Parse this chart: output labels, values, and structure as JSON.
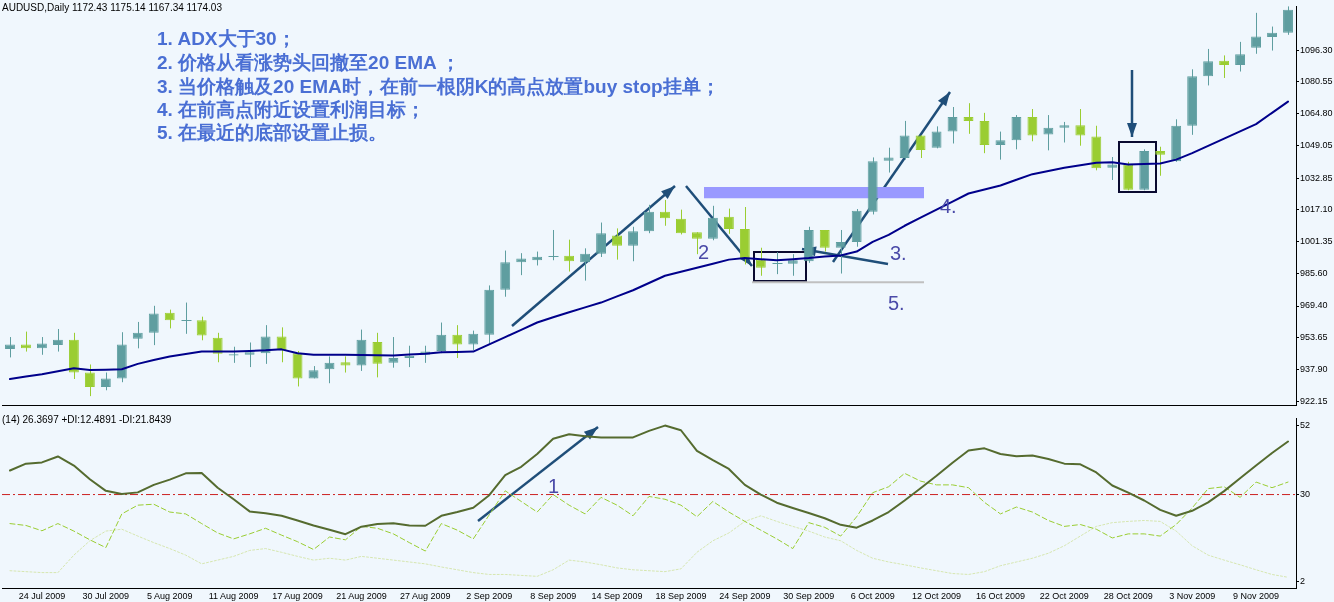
{
  "chart_data": [
    {
      "type": "candlestick",
      "title": "AUDUSD,Daily 1172.43 1175.14 1167.34 1174.03",
      "categories": [
        null,
        null,
        null,
        null,
        null,
        null,
        null,
        null,
        null,
        null,
        null,
        null,
        null,
        null,
        null,
        null,
        null,
        null,
        null,
        null,
        null,
        null,
        null,
        null,
        null,
        null,
        null,
        null,
        null,
        null,
        null,
        null,
        null,
        null,
        null,
        null,
        null,
        null,
        null,
        null,
        null,
        null,
        null,
        null,
        null,
        null,
        null,
        null,
        null,
        null,
        null,
        null,
        null,
        null,
        null,
        null,
        null,
        null,
        null,
        null,
        null,
        null,
        null,
        null,
        null,
        null,
        null,
        null,
        null,
        null,
        null,
        null,
        null,
        null,
        null,
        null,
        null,
        null,
        null,
        null,
        null
      ],
      "ohlc": [
        [
          948.1,
          954.0,
          943.9,
          950.3
        ],
        [
          950.3,
          956.7,
          946.8,
          948.4
        ],
        [
          948.4,
          954.0,
          945.2,
          950.8
        ],
        [
          950.0,
          958.0,
          946.8,
          952.7
        ],
        [
          952.7,
          956.1,
          933.2,
          936.4
        ],
        [
          936.4,
          940.4,
          924.7,
          929.2
        ],
        [
          929.2,
          936.4,
          927.6,
          933.5
        ],
        [
          933.5,
          956.4,
          931.6,
          950.3
        ],
        [
          953.2,
          961.5,
          948.4,
          956.1
        ],
        [
          956.1,
          969.5,
          950.0,
          965.7
        ],
        [
          966.0,
          967.6,
          958.3,
          962.3
        ],
        [
          962.5,
          971.1,
          955.6,
          962.5
        ],
        [
          962.3,
          964.1,
          952.4,
          954.8
        ],
        [
          953.7,
          956.1,
          941.5,
          945.7
        ],
        [
          944.9,
          949.2,
          941.2,
          945.5
        ],
        [
          945.2,
          951.3,
          939.1,
          946.5
        ],
        [
          946.0,
          959.9,
          940.7,
          954.3
        ],
        [
          954.3,
          958.8,
          941.5,
          947.6
        ],
        [
          946.0,
          947.1,
          929.5,
          933.5
        ],
        [
          933.5,
          939.6,
          933.5,
          937.5
        ],
        [
          938.0,
          944.4,
          931.1,
          941.2
        ],
        [
          941.5,
          944.4,
          936.4,
          939.9
        ],
        [
          939.9,
          957.7,
          937.2,
          952.7
        ],
        [
          951.6,
          956.1,
          934.0,
          940.7
        ],
        [
          941.2,
          954.0,
          938.8,
          943.6
        ],
        [
          943.6,
          949.7,
          939.1,
          944.7
        ],
        [
          945.2,
          949.7,
          941.2,
          946.8
        ],
        [
          947.1,
          961.2,
          946.0,
          955.1
        ],
        [
          955.1,
          959.9,
          943.6,
          950.3
        ],
        [
          950.3,
          957.2,
          947.6,
          955.6
        ],
        [
          955.1,
          979.6,
          950.8,
          977.5
        ],
        [
          977.5,
          996.9,
          974.0,
          991.1
        ],
        [
          991.1,
          995.6,
          984.7,
          992.9
        ],
        [
          992.1,
          996.4,
          989.5,
          993.8
        ],
        [
          994.3,
          1007.1,
          992.1,
          994.3
        ],
        [
          994.3,
          1002.3,
          986.5,
          991.6
        ],
        [
          991.1,
          998.0,
          982.0,
          995.3
        ],
        [
          995.3,
          1010.8,
          993.7,
          1005.5
        ],
        [
          1004.4,
          1007.9,
          992.4,
          999.3
        ],
        [
          999.3,
          1008.7,
          991.6,
          1006.5
        ],
        [
          1006.5,
          1019.6,
          1005.5,
          1016.1
        ],
        [
          1016.1,
          1022.0,
          1009.2,
          1012.9
        ],
        [
          1012.7,
          1017.2,
          1004.9,
          1005.5
        ],
        [
          1006.0,
          1006.0,
          995.1,
          1002.8
        ],
        [
          1002.8,
          1019.1,
          1002.0,
          1013.2
        ],
        [
          1013.7,
          1017.7,
          1005.2,
          1007.6
        ],
        [
          1007.6,
          1018.5,
          990.0,
          993.2
        ],
        [
          992.4,
          998.3,
          984.4,
          988.4
        ],
        [
          990.5,
          996.1,
          985.2,
          990.5
        ],
        [
          990.3,
          995.1,
          984.4,
          992.1
        ],
        [
          991.6,
          1008.7,
          990.8,
          1007.1
        ],
        [
          1007.1,
          1007.1,
          996.4,
          998.3
        ],
        [
          998.3,
          1007.1,
          985.5,
          1001.2
        ],
        [
          1001.2,
          1017.5,
          998.8,
          1016.7
        ],
        [
          1016.1,
          1043.1,
          1014.8,
          1041.2
        ],
        [
          1041.5,
          1047.9,
          1035.6,
          1043.1
        ],
        [
          1042.8,
          1061.2,
          1042.0,
          1054.0
        ],
        [
          1054.0,
          1054.0,
          1042.8,
          1046.8
        ],
        [
          1047.9,
          1058.5,
          1047.6,
          1055.9
        ],
        [
          1055.9,
          1068.1,
          1050.0,
          1063.1
        ],
        [
          1063.1,
          1070.0,
          1054.8,
          1061.2
        ],
        [
          1061.2,
          1065.2,
          1045.2,
          1049.2
        ],
        [
          1049.2,
          1055.9,
          1042.0,
          1051.6
        ],
        [
          1051.6,
          1064.1,
          1047.1,
          1063.1
        ],
        [
          1063.1,
          1067.1,
          1051.1,
          1054.0
        ],
        [
          1054.5,
          1064.1,
          1046.6,
          1057.8
        ],
        [
          1057.8,
          1060.7,
          1050.5,
          1059.1
        ],
        [
          1059.1,
          1067.1,
          1048.9,
          1054.0
        ],
        [
          1053.5,
          1058.8,
          1036.7,
          1037.7
        ],
        [
          1038.0,
          1043.3,
          1031.9,
          1039.6
        ],
        [
          1039.6,
          1040.9,
          1026.8,
          1027.1
        ],
        [
          1027.1,
          1047.1,
          1026.8,
          1046.3
        ],
        [
          1046.3,
          1048.4,
          1034.0,
          1044.4
        ],
        [
          1041.2,
          1062.0,
          1040.9,
          1058.8
        ],
        [
          1058.8,
          1086.8,
          1054.3,
          1083.3
        ],
        [
          1083.3,
          1096.9,
          1078.8,
          1090.8
        ],
        [
          1091.1,
          1093.7,
          1082.5,
          1088.9
        ],
        [
          1088.9,
          1100.4,
          1085.7,
          1094.3
        ],
        [
          1097.5,
          1114.8,
          1094.5,
          1103.1
        ],
        [
          1102.8,
          1108.0,
          1096.1,
          1104.9
        ],
        [
          1104.9,
          1118.0,
          1103.9,
          1116.4
        ]
      ],
      "colors": [
        "#5f9ea0",
        "#9acd32",
        "#5f9ea0",
        "#5f9ea0",
        "#9acd32",
        "#9acd32",
        "#5f9ea0",
        "#5f9ea0",
        "#5f9ea0",
        "#5f9ea0",
        "#9acd32",
        "#5f9ea0",
        "#9acd32",
        "#9acd32",
        "#5f9ea0",
        "#5f9ea0",
        "#5f9ea0",
        "#9acd32",
        "#9acd32",
        "#5f9ea0",
        "#5f9ea0",
        "#9acd32",
        "#5f9ea0",
        "#9acd32",
        "#5f9ea0",
        "#5f9ea0",
        "#5f9ea0",
        "#5f9ea0",
        "#9acd32",
        "#5f9ea0",
        "#5f9ea0",
        "#5f9ea0",
        "#5f9ea0",
        "#5f9ea0",
        "#5f9ea0",
        "#9acd32",
        "#5f9ea0",
        "#5f9ea0",
        "#9acd32",
        "#5f9ea0",
        "#5f9ea0",
        "#9acd32",
        "#9acd32",
        "#9acd32",
        "#5f9ea0",
        "#9acd32",
        "#9acd32",
        "#9acd32",
        "#5f9ea0",
        "#5f9ea0",
        "#5f9ea0",
        "#9acd32",
        "#5f9ea0",
        "#5f9ea0",
        "#5f9ea0",
        "#5f9ea0",
        "#5f9ea0",
        "#9acd32",
        "#5f9ea0",
        "#5f9ea0",
        "#9acd32",
        "#9acd32",
        "#5f9ea0",
        "#5f9ea0",
        "#9acd32",
        "#5f9ea0",
        "#5f9ea0",
        "#9acd32",
        "#9acd32",
        "#5f9ea0",
        "#9acd32",
        "#5f9ea0",
        "#9acd32",
        "#5f9ea0",
        "#5f9ea0",
        "#5f9ea0",
        "#9acd32",
        "#5f9ea0",
        "#5f9ea0",
        "#5f9ea0",
        "#5f9ea0"
      ],
      "series": [
        {
          "type": "line",
          "color": "#00008b",
          "line_style": "solid",
          "values": [
            933.2,
            934.4,
            935.6,
            937.0,
            938.5,
            937.7,
            937.8,
            938.0,
            940.7,
            942.6,
            944.4,
            945.6,
            946.8,
            946.8,
            946.8,
            947.1,
            947.4,
            947.9,
            946.0,
            945.2,
            945.2,
            945.2,
            945.1,
            945.0,
            944.9,
            945.3,
            945.7,
            946.5,
            946.6,
            946.8,
            950.4,
            954.0,
            957.6,
            961.2,
            963.8,
            966.3,
            968.7,
            971.1,
            974.2,
            977.2,
            980.8,
            984.4,
            986.4,
            988.4,
            990.4,
            992.4,
            993.2,
            992.6,
            992.1,
            992.6,
            993.2,
            994.0,
            994.5,
            996.4,
            1001.2,
            1004.7,
            1009.2,
            1013.2,
            1017.2,
            1021.2,
            1025.2,
            1027.2,
            1029.2,
            1032.0,
            1034.8,
            1036.4,
            1038.0,
            1039.2,
            1040.4,
            1040.7,
            1039.6,
            1039.8,
            1040.1,
            1042.0,
            1045.2,
            1048.8,
            1052.4,
            1056.0,
            1059.6,
            1065.2,
            1070.8
          ]
        }
      ],
      "ylim": [
        920,
        1118
      ],
      "yticks": [
        922.15,
        {
          "value": 937.9,
          "label": "937.90"
        },
        953.65,
        {
          "value": 969.4,
          "label": "969.40"
        },
        {
          "value": 985.6,
          "label": "985.60"
        },
        1001.35,
        {
          "value": 1017.1,
          "label": "1017.10"
        },
        1032.85,
        1049.05,
        {
          "value": 1064.8,
          "label": "1064.80"
        },
        1080.55,
        {
          "value": 1096.3,
          "label": "1096.30"
        }
      ],
      "bands": [
        {
          "axis": "y",
          "from": 1022.8,
          "to": 1028.4,
          "color": "#9999ff"
        }
      ],
      "ref_lines": [
        {
          "axis": "y",
          "value": 981.2,
          "color": "#c0c0c0"
        }
      ],
      "annotations": [
        "1. ADX大于30；",
        "2. 价格从看涨势头回撤至20 EMA ；",
        "3. 当价格触及20 EMA时，在前一根阴K的高点放置buy stop挂单；",
        "4. 在前高点附近设置利润目标；",
        "5. 在最近的底部设置止损。",
        "2",
        "3.",
        "4.",
        "5."
      ],
      "tick_labels": "y",
      "grid": false,
      "legend": false
    },
    {
      "type": "line",
      "title": "(14) 26.3697 +DI:12.4891 -DI:21.8439",
      "categories": [
        null,
        null,
        "24 Jul 2009",
        null,
        null,
        null,
        "30 Jul 2009",
        null,
        null,
        null,
        "5 Aug 2009",
        null,
        null,
        null,
        "11 Aug 2009",
        null,
        null,
        null,
        "17 Aug 2009",
        null,
        null,
        null,
        "21 Aug 2009",
        null,
        null,
        null,
        "27 Aug 2009",
        null,
        null,
        null,
        "2 Sep 2009",
        null,
        null,
        null,
        "8 Sep 2009",
        null,
        null,
        null,
        "14 Sep 2009",
        null,
        null,
        null,
        "18 Sep 2009",
        null,
        null,
        null,
        "24 Sep 2009",
        null,
        null,
        null,
        "30 Sep 2009",
        null,
        null,
        null,
        "6 Oct 2009",
        null,
        null,
        null,
        "12 Oct 2009",
        null,
        null,
        null,
        "16 Oct 2009",
        null,
        null,
        null,
        "22 Oct 2009",
        null,
        null,
        null,
        "28 Oct 2009",
        null,
        null,
        null,
        "3 Nov 2009",
        null,
        null,
        null,
        "9 Nov 2009",
        null,
        null
      ],
      "series": [
        {
          "color": "#556b2f",
          "line_style": "solid",
          "values": [
            37.7,
            39.9,
            40.3,
            42.2,
            39.3,
            34.9,
            31.2,
            30.2,
            30.7,
            33.1,
            34.8,
            36.8,
            36.9,
            32.2,
            28.5,
            24.6,
            24.0,
            23.2,
            21.7,
            20.1,
            18.7,
            17.3,
            19.7,
            20.6,
            20.8,
            20.1,
            20.0,
            23.2,
            24.4,
            25.8,
            29.8,
            36.2,
            38.9,
            43.0,
            47.9,
            49.3,
            48.7,
            48.3,
            48.3,
            48.3,
            50.4,
            52.1,
            50.6,
            44.0,
            41.0,
            38.2,
            33.1,
            30.0,
            27.4,
            25.7,
            24.1,
            22.4,
            20.3,
            19.4,
            21.7,
            24.4,
            28.1,
            32.0,
            36.0,
            40.2,
            44.1,
            44.8,
            43.0,
            42.3,
            42.5,
            41.4,
            39.9,
            39.7,
            37.1,
            32.9,
            30.6,
            28.1,
            25.1,
            23.2,
            24.8,
            27.5,
            31.1,
            35.2,
            39.3,
            43.3,
            47.0
          ]
        },
        {
          "color": "#9acd32",
          "line_style": "dashed",
          "values": [
            20.7,
            20.1,
            18.4,
            20.7,
            18.3,
            15.5,
            13.0,
            23.8,
            26.6,
            26.9,
            24.4,
            23.8,
            20.7,
            17.7,
            15.8,
            17.4,
            19.2,
            17.0,
            14.9,
            12.4,
            16.4,
            15.5,
            19.8,
            19.2,
            17.4,
            14.6,
            11.9,
            20.7,
            18.6,
            15.8,
            23.5,
            31.2,
            27.8,
            24.4,
            30.0,
            26.6,
            23.8,
            29.1,
            26.6,
            23.2,
            29.4,
            28.5,
            26.6,
            22.9,
            27.8,
            24.4,
            21.4,
            18.6,
            15.8,
            12.7,
            21.0,
            19.5,
            16.7,
            22.9,
            30.6,
            32.5,
            36.8,
            34.3,
            33.1,
            33.1,
            32.2,
            27.5,
            23.8,
            26.0,
            24.4,
            21.7,
            19.8,
            20.4,
            18.9,
            16.1,
            17.4,
            17.4,
            16.7,
            20.4,
            25.7,
            31.9,
            32.5,
            29.1,
            34.0,
            32.2,
            34.0
          ]
        },
        {
          "color": "#d6e6b0",
          "line_style": "dotted",
          "values": [
            5.6,
            5.3,
            5.0,
            5.0,
            10.6,
            15.2,
            18.3,
            18.9,
            16.7,
            14.6,
            12.7,
            10.6,
            7.8,
            9.0,
            10.2,
            12.1,
            12.7,
            11.5,
            10.2,
            9.0,
            9.6,
            9.0,
            10.2,
            9.6,
            9.0,
            8.4,
            7.8,
            6.8,
            5.9,
            5.0,
            4.4,
            4.4,
            4.1,
            3.8,
            5.9,
            9.0,
            8.4,
            7.5,
            6.5,
            5.9,
            5.6,
            5.3,
            6.2,
            11.5,
            15.2,
            17.7,
            21.4,
            23.2,
            21.4,
            19.8,
            18.3,
            16.4,
            15.2,
            12.1,
            9.6,
            8.4,
            7.5,
            6.5,
            5.6,
            4.7,
            4.4,
            5.3,
            7.2,
            8.4,
            9.6,
            11.2,
            13.6,
            16.7,
            19.8,
            21.0,
            21.4,
            21.7,
            21.4,
            18.3,
            13.6,
            10.6,
            9.0,
            7.5,
            5.9,
            4.4,
            3.5
          ]
        }
      ],
      "ylim": [
        0,
        54.4
      ],
      "yticks": [
        2,
        30,
        52
      ],
      "ref_lines": [
        {
          "axis": "y",
          "value": 30,
          "color": "#cc2222",
          "line_style": "dashed"
        }
      ],
      "annotations": [
        "1"
      ],
      "grid": false,
      "legend": false
    }
  ]
}
